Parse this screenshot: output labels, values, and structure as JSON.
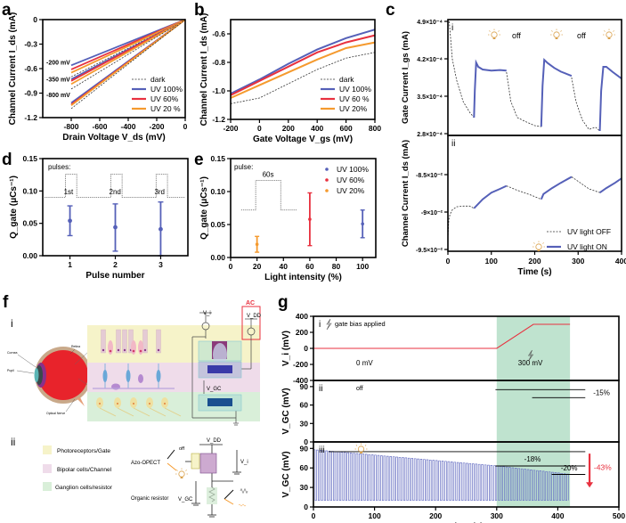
{
  "panels": {
    "a": "a",
    "b": "b",
    "c": "c",
    "d": "d",
    "e": "e",
    "f": "f",
    "g": "g"
  },
  "colors": {
    "uv100": "#5560b8",
    "uv60": "#e8313f",
    "uv20": "#f59a2e",
    "dark": "#333333",
    "green_band": "#bfe3cf",
    "photoreceptor": "#f6f3c9",
    "bipolar": "#efdcea",
    "ganglion": "#d9efd9",
    "ac_red": "#e8313f"
  },
  "chart_data": [
    {
      "id": "a",
      "type": "line",
      "xlabel": "Drain Voltage V_ds (mV)",
      "ylabel": "Channel Current I_ds (mA)",
      "xlim": [
        -1000,
        0
      ],
      "ylim": [
        -1.2,
        0
      ],
      "xticks": [
        "-800",
        "-600",
        "-400",
        "-200",
        "0"
      ],
      "xtick_values": [
        -800,
        -600,
        -400,
        -200,
        0
      ],
      "yticks": [
        "0",
        "-0.3",
        "-0.6",
        "-0.9",
        "-1.2"
      ],
      "ytick_values": [
        0,
        -0.3,
        -0.6,
        -0.9,
        -1.2
      ],
      "annotations": [
        "-200 mV",
        "-350 mV",
        "-800 mV"
      ],
      "legend": [
        "dark",
        "UV 100%",
        "UV 60%",
        "UV 20 %"
      ],
      "series": [
        {
          "name": "UV 100% (-200 mV)",
          "color_key": "uv100",
          "x": [
            -800,
            0
          ],
          "y": [
            -0.56,
            0
          ]
        },
        {
          "name": "UV 60% (-200 mV)",
          "color_key": "uv60",
          "x": [
            -800,
            0
          ],
          "y": [
            -0.61,
            0
          ]
        },
        {
          "name": "UV 20% (-200 mV)",
          "color_key": "uv20",
          "x": [
            -800,
            0
          ],
          "y": [
            -0.65,
            0
          ]
        },
        {
          "name": "dark (-200 mV)",
          "color_key": "dark",
          "dashed": true,
          "x": [
            -800,
            0
          ],
          "y": [
            -0.7,
            0
          ]
        },
        {
          "name": "UV 100% (-350 mV)",
          "color_key": "uv100",
          "x": [
            -800,
            0
          ],
          "y": [
            -0.73,
            0
          ]
        },
        {
          "name": "UV 60% (-350 mV)",
          "color_key": "uv60",
          "x": [
            -800,
            0
          ],
          "y": [
            -0.75,
            0
          ]
        },
        {
          "name": "UV 20% (-350 mV)",
          "color_key": "uv20",
          "x": [
            -800,
            0
          ],
          "y": [
            -0.79,
            0
          ]
        },
        {
          "name": "dark (-350 mV)",
          "color_key": "dark",
          "dashed": true,
          "x": [
            -800,
            0
          ],
          "y": [
            -0.85,
            0
          ]
        },
        {
          "name": "UV 100% (-800 mV)",
          "color_key": "uv100",
          "x": [
            -800,
            0
          ],
          "y": [
            -1.02,
            0
          ]
        },
        {
          "name": "UV 60% (-800 mV)",
          "color_key": "uv60",
          "x": [
            -800,
            0
          ],
          "y": [
            -1.04,
            0
          ]
        },
        {
          "name": "UV 20% (-800 mV)",
          "color_key": "uv20",
          "x": [
            -800,
            0
          ],
          "y": [
            -1.05,
            0
          ]
        },
        {
          "name": "dark (-800 mV)",
          "color_key": "dark",
          "dashed": true,
          "x": [
            -800,
            0
          ],
          "y": [
            -1.09,
            0
          ]
        }
      ]
    },
    {
      "id": "b",
      "type": "line",
      "xlabel": "Gate Voltage V_gs (mV)",
      "ylabel": "Channel Current I_ds (mA)",
      "xlim": [
        -200,
        800
      ],
      "ylim": [
        -1.2,
        -0.5
      ],
      "xticks": [
        "-200",
        "0",
        "200",
        "400",
        "600",
        "800"
      ],
      "xtick_values": [
        -200,
        0,
        200,
        400,
        600,
        800
      ],
      "yticks": [
        "-0.6",
        "-0.8",
        "-1.0",
        "-1.2"
      ],
      "ytick_values": [
        -0.6,
        -0.8,
        -1.0,
        -1.2
      ],
      "legend": [
        "dark",
        "UV 100%",
        "UV 60 %",
        "UV 20%"
      ],
      "series": [
        {
          "name": "UV 100%",
          "color_key": "uv100",
          "x": [
            -200,
            0,
            200,
            400,
            600,
            800
          ],
          "y": [
            -1.02,
            -0.92,
            -0.81,
            -0.71,
            -0.63,
            -0.57
          ]
        },
        {
          "name": "UV 60 %",
          "color_key": "uv60",
          "x": [
            -200,
            0,
            200,
            400,
            600,
            800
          ],
          "y": [
            -1.03,
            -0.93,
            -0.83,
            -0.73,
            -0.66,
            -0.61
          ]
        },
        {
          "name": "UV 20%",
          "color_key": "uv20",
          "x": [
            -200,
            0,
            200,
            400,
            600,
            800
          ],
          "y": [
            -1.05,
            -0.96,
            -0.87,
            -0.78,
            -0.7,
            -0.66
          ]
        },
        {
          "name": "dark",
          "color_key": "dark",
          "dashed": true,
          "x": [
            -200,
            0,
            200,
            400,
            600,
            800
          ],
          "y": [
            -1.09,
            -1.05,
            -0.95,
            -0.85,
            -0.77,
            -0.73
          ]
        }
      ]
    },
    {
      "id": "c",
      "type": "line",
      "xlabel": "Time (s)",
      "xlim": [
        0,
        400
      ],
      "xticks": [
        "0",
        "100",
        "200",
        "300",
        "400"
      ],
      "xtick_values": [
        0,
        100,
        200,
        300,
        400
      ],
      "subplots": [
        {
          "roman": "i",
          "ylabel": "Gate Current I_gs (mA)",
          "ylim": [
            0.00028,
            0.00049
          ],
          "yticks": [
            "2.8×10⁻⁴",
            "3.5×10⁻⁴",
            "4.2×10⁻⁴",
            "4.9×10⁻⁴"
          ],
          "ytick_values": [
            0.00028,
            0.00035,
            0.00042,
            0.00049
          ],
          "annotations": [
            "off",
            "off"
          ],
          "off_segments": [
            {
              "x": [
                3,
                10,
                20,
                35,
                50,
                60
              ],
              "y": [
                0.00049,
                0.00042,
                0.00038,
                0.00034,
                0.00032,
                0.00031
              ]
            },
            {
              "x": [
                135,
                145,
                160,
                180,
                200,
                215
              ],
              "y": [
                0.000395,
                0.00034,
                0.00031,
                0.000302,
                0.000295,
                0.000293
              ]
            },
            {
              "x": [
                285,
                295,
                310,
                325,
                340,
                350
              ],
              "y": [
                0.000385,
                0.00034,
                0.000305,
                0.000288,
                0.000292,
                0.000285
              ]
            }
          ],
          "on_segments": [
            {
              "x": [
                60,
                62,
                65,
                70,
                80,
                100,
                120,
                135
              ],
              "y": [
                0.00031,
                0.00036,
                0.000413,
                0.000405,
                0.0004,
                0.000398,
                0.000399,
                0.000398
              ]
            },
            {
              "x": [
                215,
                218,
                222,
                230,
                245,
                260,
                285
              ],
              "y": [
                0.000293,
                0.00037,
                0.000418,
                0.000412,
                0.000403,
                0.000396,
                0.000388
              ]
            },
            {
              "x": [
                350,
                353,
                358,
                365,
                380,
                400
              ],
              "y": [
                0.000285,
                0.00036,
                0.000405,
                0.000405,
                0.000395,
                0.000383
              ]
            }
          ]
        },
        {
          "roman": "ii",
          "ylabel": "Channel Current I_ds (mA)",
          "ylim": [
            -0.095,
            -0.08
          ],
          "yticks": [
            "-9.5×10⁻²",
            "-9×10⁻²",
            "-8.5×10⁻²"
          ],
          "ytick_values": [
            -0.095,
            -0.09,
            -0.085
          ],
          "legend": [
            "UV light OFF",
            "UV light ON"
          ],
          "off_segments": [
            {
              "x": [
                0,
                2,
                5,
                10,
                20,
                35,
                50,
                60
              ],
              "y": [
                -0.0935,
                -0.091,
                -0.0903,
                -0.0897,
                -0.0893,
                -0.0892,
                -0.0892,
                -0.0895
              ]
            },
            {
              "x": [
                135,
                160,
                190,
                215
              ],
              "y": [
                -0.0865,
                -0.0871,
                -0.0877,
                -0.0883
              ]
            },
            {
              "x": [
                285,
                305,
                325,
                350
              ],
              "y": [
                -0.0853,
                -0.0861,
                -0.0869,
                -0.0874
              ]
            }
          ],
          "on_segments": [
            {
              "x": [
                60,
                80,
                100,
                120,
                135
              ],
              "y": [
                -0.0895,
                -0.0883,
                -0.0874,
                -0.0869,
                -0.0865
              ]
            },
            {
              "x": [
                215,
                220,
                240,
                260,
                285
              ],
              "y": [
                -0.0883,
                -0.0876,
                -0.0868,
                -0.0861,
                -0.0853
              ]
            },
            {
              "x": [
                350,
                365,
                385,
                400
              ],
              "y": [
                -0.0874,
                -0.0868,
                -0.0861,
                -0.0855
              ]
            }
          ]
        }
      ]
    },
    {
      "id": "d",
      "type": "scatter",
      "xlabel": "Pulse number",
      "ylabel": "Q_gate (μCs⁻¹)",
      "xlim": [
        0.4,
        3.6
      ],
      "ylim": [
        0,
        0.15
      ],
      "xticks": [
        "1",
        "2",
        "3"
      ],
      "xtick_values": [
        1,
        2,
        3
      ],
      "yticks": [
        "0.00",
        "0.05",
        "0.10",
        "0.15"
      ],
      "ytick_values": [
        0,
        0.05,
        0.1,
        0.15
      ],
      "inset_label": "pulses:",
      "pulse_labels": [
        "1st",
        "2nd",
        "3rd"
      ],
      "points": [
        {
          "x": 1,
          "y": 0.054,
          "err_low": 0.031,
          "err_high": 0.077
        },
        {
          "x": 2,
          "y": 0.044,
          "err_low": 0.007,
          "err_high": 0.08
        },
        {
          "x": 3,
          "y": 0.041,
          "err_low": 0.0,
          "err_high": 0.083
        }
      ],
      "color_key": "uv100"
    },
    {
      "id": "e",
      "type": "scatter",
      "xlabel": "Light intensity (%)",
      "ylabel": "Q_gate (μCs⁻¹)",
      "xlim": [
        0,
        110
      ],
      "ylim": [
        0,
        0.15
      ],
      "xticks": [
        "0",
        "20",
        "40",
        "60",
        "80",
        "100"
      ],
      "xtick_values": [
        0,
        20,
        40,
        60,
        80,
        100
      ],
      "yticks": [
        "0.00",
        "0.05",
        "0.10",
        "0.15"
      ],
      "ytick_values": [
        0,
        0.05,
        0.1,
        0.15
      ],
      "inset_label": "pulse:",
      "pulse_duration": "60s",
      "legend": [
        "UV 100%",
        "UV 60%",
        "UV 20%"
      ],
      "points": [
        {
          "x": 20,
          "y": 0.02,
          "err_low": 0.008,
          "err_high": 0.032,
          "color_key": "uv20"
        },
        {
          "x": 60,
          "y": 0.058,
          "err_low": 0.018,
          "err_high": 0.098,
          "color_key": "uv60"
        },
        {
          "x": 100,
          "y": 0.051,
          "err_low": 0.03,
          "err_high": 0.072,
          "color_key": "uv100"
        }
      ]
    },
    {
      "id": "g",
      "type": "line",
      "xlabel": "Time (s)",
      "xlim": [
        0,
        500
      ],
      "xticks": [
        "0",
        "100",
        "200",
        "300",
        "400",
        "500"
      ],
      "xtick_values": [
        0,
        100,
        200,
        300,
        400,
        500
      ],
      "shaded_region": [
        300,
        420
      ],
      "subplots": [
        {
          "roman": "i",
          "ylabel": "V_i (mV)",
          "ylim": [
            -400,
            400
          ],
          "yticks": [
            "400",
            "200",
            "0",
            "-200",
            "-400"
          ],
          "ytick_values": [
            400,
            200,
            0,
            -200,
            -400
          ],
          "title_note": "gate bias applied",
          "annotations": [
            "0 mV",
            "300 mV"
          ],
          "series": [
            {
              "name": "V_i",
              "color_key": "uv60",
              "x": [
                0,
                300,
                360,
                420
              ],
              "y": [
                0,
                0,
                300,
                300
              ]
            }
          ]
        },
        {
          "roman": "ii",
          "ylabel": "V_GC (mV)",
          "ylim": [
            0,
            100
          ],
          "yticks": [
            "90",
            "60",
            "30",
            "0"
          ],
          "ytick_values": [
            90,
            60,
            30,
            0
          ],
          "annotations": [
            "off",
            "-15%"
          ],
          "ref_lines": [
            {
              "x": [
                298,
                445
              ],
              "y": 85
            },
            {
              "x": [
                358,
                445
              ],
              "y": 72
            }
          ]
        },
        {
          "roman": "iii",
          "ylabel": "V_GC (mV)",
          "ylim": [
            0,
            100
          ],
          "yticks": [
            "90",
            "60",
            "30",
            "0"
          ],
          "ytick_values": [
            90,
            60,
            30,
            0
          ],
          "annotations": [
            "-18%",
            "-20%",
            "-43%"
          ],
          "oscillation": {
            "start": 0,
            "end": 420,
            "period": 5,
            "low": 10,
            "high_start": 88,
            "high_at_300": 63,
            "high_end": 50
          },
          "ref_lines": [
            {
              "x": [
                25,
                445
              ],
              "y": 85
            },
            {
              "x": [
                298,
                445
              ],
              "y": 63
            },
            {
              "x": [
                390,
                445
              ],
              "y": 50
            }
          ]
        }
      ]
    }
  ],
  "panel_f": {
    "sub_i": "i",
    "sub_ii": "ii",
    "eye_labels": [
      "Cornea",
      "Pupil",
      "Retina",
      "Optical Nerve"
    ],
    "circuit_labels": {
      "vi": "V_i",
      "vdd": "V_DD",
      "vgc": "V_GC",
      "ac": "AC"
    },
    "legend": [
      "Photoreceptors/Gate",
      "Bipolar cells/Channel",
      "Ganglion cells/resistor"
    ],
    "circuit2_labels": {
      "device": "Azo-OPECT",
      "resistor": "Organic resistor",
      "vdd": "V_DD",
      "vi": "V_i",
      "vgc": "V_GC",
      "off": "off"
    }
  }
}
